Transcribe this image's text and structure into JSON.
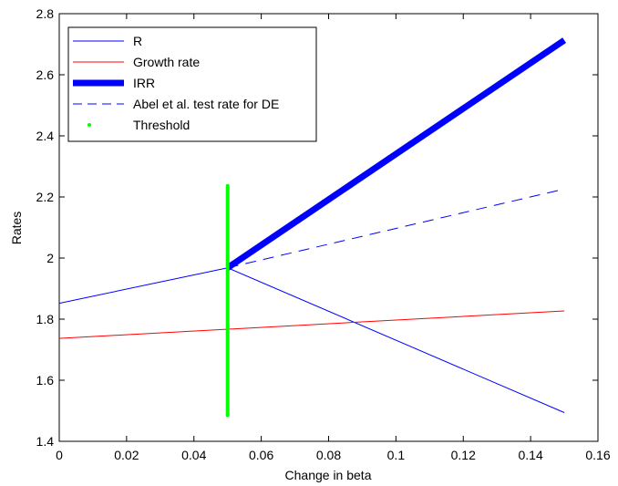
{
  "chart_data": {
    "type": "line",
    "title": "",
    "xlabel": "Change in beta",
    "ylabel": "Rates",
    "xlim": [
      0,
      0.16
    ],
    "ylim": [
      1.4,
      2.8
    ],
    "xticks": [
      0,
      0.02,
      0.04,
      0.06,
      0.08,
      0.1,
      0.12,
      0.14,
      0.16
    ],
    "xtick_labels": [
      "0",
      "0.02",
      "0.04",
      "0.06",
      "0.08",
      "0.1",
      "0.12",
      "0.14",
      "0.16"
    ],
    "yticks": [
      1.4,
      1.6,
      1.8,
      2.0,
      2.2,
      2.4,
      2.6,
      2.8
    ],
    "ytick_labels": [
      "1.4",
      "1.6",
      "1.8",
      "2",
      "2.2",
      "2.4",
      "2.6",
      "2.8"
    ],
    "grid": false,
    "legend_position": "top-left",
    "series": [
      {
        "name": "R",
        "color": "#0000ff",
        "style": "solid",
        "weight": "thin",
        "x": [
          0,
          0.05,
          0.15
        ],
        "y": [
          1.852,
          1.968,
          1.494
        ]
      },
      {
        "name": "Growth rate",
        "color": "#ff0000",
        "style": "solid",
        "weight": "thin",
        "x": [
          0,
          0.15
        ],
        "y": [
          1.737,
          1.827
        ]
      },
      {
        "name": "IRR",
        "color": "#0000ff",
        "style": "solid",
        "weight": "thick",
        "x": [
          0.05,
          0.15
        ],
        "y": [
          1.968,
          2.713
        ]
      },
      {
        "name": "Abel et al. test rate for DE",
        "color": "#0000ff",
        "style": "dashed",
        "weight": "thin",
        "x": [
          0.05,
          0.15
        ],
        "y": [
          1.968,
          2.226
        ]
      },
      {
        "name": "Threshold",
        "color": "#00ff00",
        "style": "dots",
        "weight": "thick",
        "x": [
          0.05,
          0.05
        ],
        "y": [
          1.486,
          2.236
        ]
      }
    ]
  }
}
